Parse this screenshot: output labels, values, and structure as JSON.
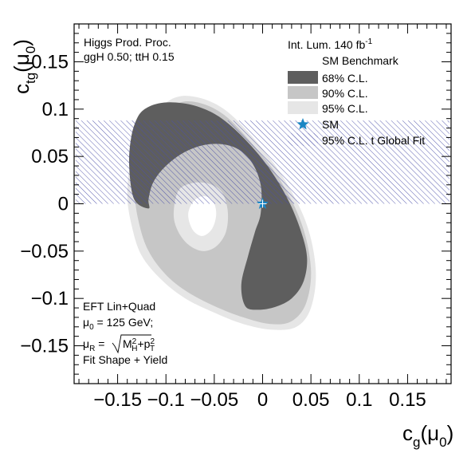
{
  "chart_data": {
    "type": "contour",
    "xlabel": {
      "main": "c",
      "sub": "g",
      "tail": "(μ",
      "tailsub": "0",
      "close": ")"
    },
    "ylabel": {
      "main": "c",
      "sub": "tg",
      "tail": "(μ",
      "tailsub": "0",
      "close": ")"
    },
    "xlim": [
      -0.195,
      0.195
    ],
    "ylim": [
      -0.19,
      0.19
    ],
    "xticks": [
      -0.15,
      -0.1,
      -0.05,
      0,
      0.05,
      0.1,
      0.15
    ],
    "yticks": [
      -0.15,
      -0.1,
      -0.05,
      0,
      0.05,
      0.1,
      0.15
    ],
    "xtick_labels": [
      "−0.15",
      "−0.1",
      "−0.05",
      "0",
      "0.05",
      "0.1",
      "0.15"
    ],
    "ytick_labels": [
      "−0.15",
      "−0.1",
      "−0.05",
      "0",
      "0.05",
      "0.1",
      "0.15"
    ],
    "annotations": {
      "top_left": [
        "Higgs Prod. Proc.",
        "ggH  0.50; ttH 0.15"
      ],
      "bottom_left": {
        "line1": "EFT Lin+Quad",
        "mu0": {
          "main": "μ",
          "sub": "0",
          "rest": " = 125 GeV;"
        },
        "muR": {
          "main": "μ",
          "sub": "R",
          "eq": " =",
          "M": "M",
          "Msup": "2",
          "Msub": "H",
          "plus": "+p",
          "psup": "2",
          "psub": "T"
        },
        "line4": "Fit Shape + Yield"
      }
    },
    "legend": {
      "header": {
        "text": "Int. Lum. 140 fb",
        "sup": "-1"
      },
      "subheader": "SM Benchmark",
      "entries": [
        {
          "label": "68% C.L.",
          "color": "#5e5e5e"
        },
        {
          "label": "90% C.L.",
          "color": "#c6c6c6"
        },
        {
          "label": "95% C.L.",
          "color": "#e6e6e6"
        },
        {
          "label": "SM",
          "color": "#1a86c4"
        },
        {
          "label": "95% C.L. t Global Fit",
          "color": "#4a4fa8"
        }
      ]
    },
    "sm_point": {
      "x": 0,
      "y": 0
    },
    "global_fit_band": {
      "ymin": 0,
      "ymax": 0.088
    },
    "contours": {
      "cl95_outer": [
        [
          -0.095,
          0.11
        ],
        [
          -0.07,
          0.113
        ],
        [
          -0.04,
          0.1
        ],
        [
          -0.01,
          0.07
        ],
        [
          0.02,
          0.03
        ],
        [
          0.045,
          -0.02
        ],
        [
          0.055,
          -0.07
        ],
        [
          0.05,
          -0.11
        ],
        [
          0.035,
          -0.13
        ],
        [
          0.01,
          -0.133
        ],
        [
          -0.02,
          -0.127
        ],
        [
          -0.05,
          -0.115
        ],
        [
          -0.08,
          -0.1
        ],
        [
          -0.105,
          -0.08
        ],
        [
          -0.125,
          -0.055
        ],
        [
          -0.135,
          -0.025
        ],
        [
          -0.14,
          0.01
        ],
        [
          -0.135,
          0.05
        ],
        [
          -0.12,
          0.085
        ]
      ],
      "cl90_outer": [
        [
          -0.09,
          0.105
        ],
        [
          -0.067,
          0.107
        ],
        [
          -0.04,
          0.094
        ],
        [
          -0.012,
          0.065
        ],
        [
          0.017,
          0.027
        ],
        [
          0.04,
          -0.02
        ],
        [
          0.05,
          -0.068
        ],
        [
          0.045,
          -0.105
        ],
        [
          0.03,
          -0.124
        ],
        [
          0.008,
          -0.127
        ],
        [
          -0.02,
          -0.12
        ],
        [
          -0.05,
          -0.108
        ],
        [
          -0.078,
          -0.093
        ],
        [
          -0.1,
          -0.075
        ],
        [
          -0.118,
          -0.05
        ],
        [
          -0.128,
          -0.02
        ],
        [
          -0.132,
          0.012
        ],
        [
          -0.127,
          0.05
        ],
        [
          -0.112,
          0.082
        ]
      ],
      "cl68_outer": [
        [
          -0.13,
          0.09
        ],
        [
          -0.122,
          0.1
        ],
        [
          -0.108,
          0.106
        ],
        [
          -0.09,
          0.107
        ],
        [
          -0.068,
          0.103
        ],
        [
          -0.045,
          0.092
        ],
        [
          -0.02,
          0.07
        ],
        [
          0.005,
          0.04
        ],
        [
          0.026,
          0.005
        ],
        [
          0.04,
          -0.03
        ],
        [
          0.046,
          -0.058
        ],
        [
          0.042,
          -0.083
        ],
        [
          0.03,
          -0.1
        ],
        [
          0.013,
          -0.109
        ],
        [
          -0.005,
          -0.112
        ],
        [
          -0.018,
          -0.108
        ],
        [
          -0.022,
          -0.085
        ],
        [
          -0.015,
          -0.055
        ],
        [
          -0.008,
          -0.03
        ],
        [
          -0.002,
          -0.01
        ],
        [
          -0.002,
          0.02
        ],
        [
          -0.012,
          0.045
        ],
        [
          -0.03,
          0.06
        ],
        [
          -0.055,
          0.063
        ],
        [
          -0.08,
          0.055
        ],
        [
          -0.1,
          0.04
        ],
        [
          -0.113,
          0.023
        ],
        [
          -0.118,
          0.005
        ],
        [
          -0.118,
          -0.005
        ],
        [
          -0.133,
          0.005
        ],
        [
          -0.138,
          0.04
        ],
        [
          -0.136,
          0.07
        ]
      ],
      "cl90_hole": [
        [
          -0.087,
          0.014
        ],
        [
          -0.072,
          0.022
        ],
        [
          -0.055,
          0.021
        ],
        [
          -0.042,
          0.012
        ],
        [
          -0.036,
          -0.008
        ],
        [
          -0.038,
          -0.03
        ],
        [
          -0.048,
          -0.045
        ],
        [
          -0.062,
          -0.05
        ],
        [
          -0.077,
          -0.043
        ],
        [
          -0.088,
          -0.028
        ],
        [
          -0.092,
          -0.01
        ]
      ],
      "cl95_hole": [
        [
          -0.072,
          0.002
        ],
        [
          -0.062,
          0.008
        ],
        [
          -0.052,
          0.004
        ],
        [
          -0.048,
          -0.01
        ],
        [
          -0.052,
          -0.026
        ],
        [
          -0.062,
          -0.034
        ],
        [
          -0.072,
          -0.028
        ],
        [
          -0.077,
          -0.012
        ]
      ]
    }
  }
}
